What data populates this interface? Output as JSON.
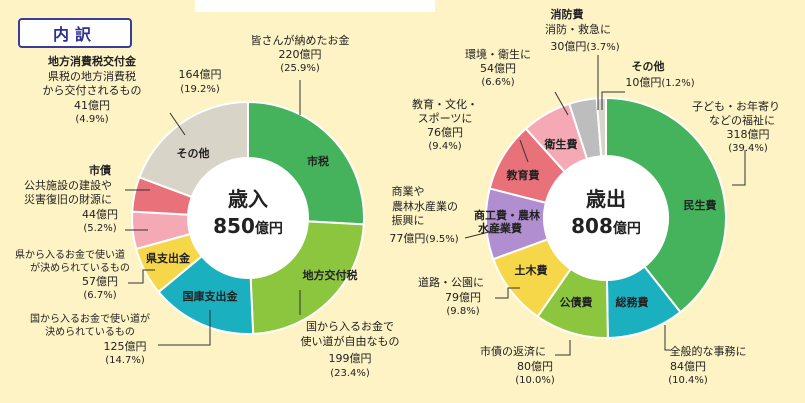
{
  "header": "内訳",
  "chart_data": [
    {
      "type": "pie",
      "center_title": "歳入",
      "center_value": "850",
      "center_unit": "億円",
      "slices": [
        {
          "name": "市税",
          "value": 220,
          "amount": "220億円",
          "pct": "(25.9%)",
          "note": "皆さんが納めたお金",
          "color": "#45b35c"
        },
        {
          "name": "地方交付税",
          "value": 199,
          "amount": "199億円",
          "pct": "(23.4%)",
          "note_lines": [
            "国から入るお金で",
            "使い道が自由なもの"
          ],
          "color": "#8cc63f"
        },
        {
          "name": "国庫支出金",
          "value": 125,
          "amount": "125億円",
          "pct": "(14.7%)",
          "note_lines": [
            "国から入るお金で使い道が",
            "決められているもの"
          ],
          "color": "#1bb0c0"
        },
        {
          "name": "県支出金",
          "value": 57,
          "amount": "57億円",
          "pct": "(6.7%)",
          "note_lines": [
            "県から入るお金で使い道",
            "が決められているもの"
          ],
          "color": "#f7d74a"
        },
        {
          "name": "市債",
          "value": 44,
          "amount": "44億円",
          "pct": "(5.2%)",
          "note_lines": [
            "公共施設の建設や",
            "災害復旧の財源に"
          ],
          "color": "#f4a9b4"
        },
        {
          "name": "地方消費税交付金",
          "value": 41,
          "amount": "41億円",
          "pct": "(4.9%)",
          "note_lines": [
            "県税の地方消費税",
            "から交付されるもの"
          ],
          "color": "#e9717a"
        },
        {
          "name": "その他",
          "value": 164,
          "amount": "164億円",
          "pct": "(19.2%)",
          "color": "#d9d4c8"
        }
      ]
    },
    {
      "type": "pie",
      "center_title": "歳出",
      "center_value": "808",
      "center_unit": "億円",
      "slices": [
        {
          "name": "民生費",
          "value": 318,
          "amount": "318億円",
          "pct": "(39.4%)",
          "note_lines": [
            "子ども・お年寄り",
            "などの福祉に"
          ],
          "color": "#45b35c"
        },
        {
          "name": "総務費",
          "value": 84,
          "amount": "84億円",
          "pct": "(10.4%)",
          "note": "全般的な事務に",
          "color": "#1bb0c0"
        },
        {
          "name": "公債費",
          "value": 80,
          "amount": "80億円",
          "pct": "(10.0%)",
          "note": "市債の返済に",
          "color": "#8cc63f"
        },
        {
          "name": "土木費",
          "value": 79,
          "amount": "79億円",
          "pct": "(9.8%)",
          "note": "道路・公園に",
          "color": "#f7d74a"
        },
        {
          "name": "商工費・農林水産業費",
          "label_lines": [
            "商工費・農林",
            "水産業費"
          ],
          "value": 77,
          "amount": "77億円",
          "pct": "(9.5%)",
          "note_lines": [
            "商業や",
            "農林水産業の",
            "振興に"
          ],
          "color": "#b18ed0"
        },
        {
          "name": "教育費",
          "value": 76,
          "amount": "76億円",
          "pct": "(9.4%)",
          "note_lines": [
            "教育・文化・",
            "スポーツに"
          ],
          "color": "#e9717a"
        },
        {
          "name": "衛生費",
          "value": 54,
          "amount": "54億円",
          "pct": "(6.6%)",
          "note": "環境・衛生に",
          "color": "#f4a9b4"
        },
        {
          "name": "消防費",
          "value": 30,
          "amount": "30億円",
          "pct": "(3.7%)",
          "note": "消防・救急に",
          "color": "#bdbdbd"
        },
        {
          "name": "その他",
          "value": 10,
          "amount": "10億円",
          "pct": "(1.2%)",
          "color": "#d9d4c8"
        }
      ]
    }
  ]
}
